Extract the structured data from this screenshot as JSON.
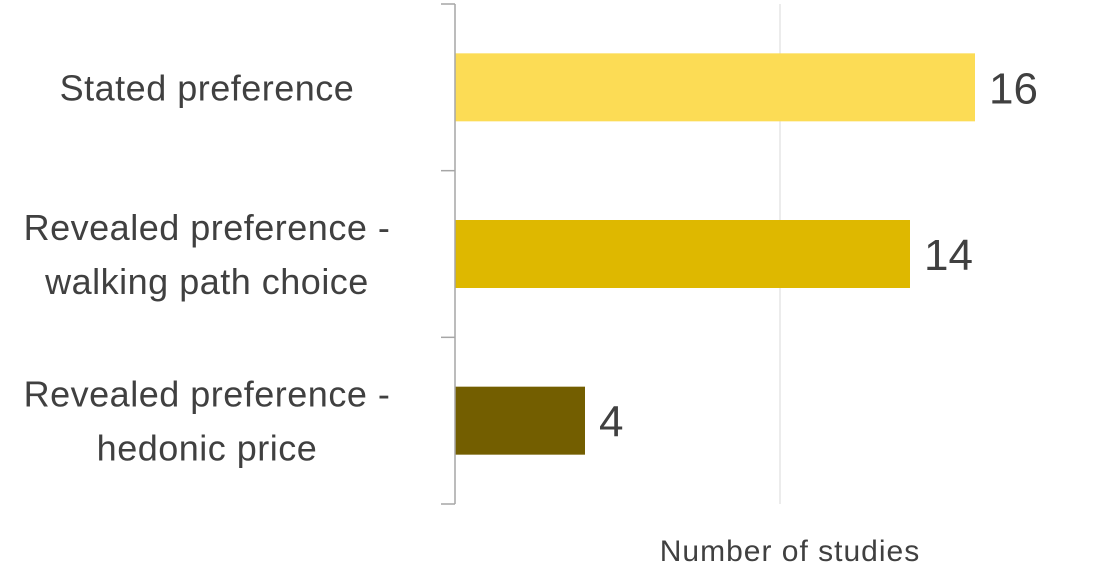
{
  "chart_data": {
    "type": "bar",
    "orientation": "horizontal",
    "categories": [
      [
        "Stated preference"
      ],
      [
        "Revealed preference -",
        "walking path choice"
      ],
      [
        "Revealed preference -",
        "hedonic price"
      ]
    ],
    "values": [
      16,
      14,
      4
    ],
    "data_labels": [
      "16",
      "14",
      "4"
    ],
    "colors": [
      "#FCDC55",
      "#DEB800",
      "#735E00"
    ],
    "xlabel": "Number of studies",
    "ylabel": "",
    "title": "",
    "xlim": [
      0,
      20
    ],
    "grid": true,
    "legend": "none"
  }
}
